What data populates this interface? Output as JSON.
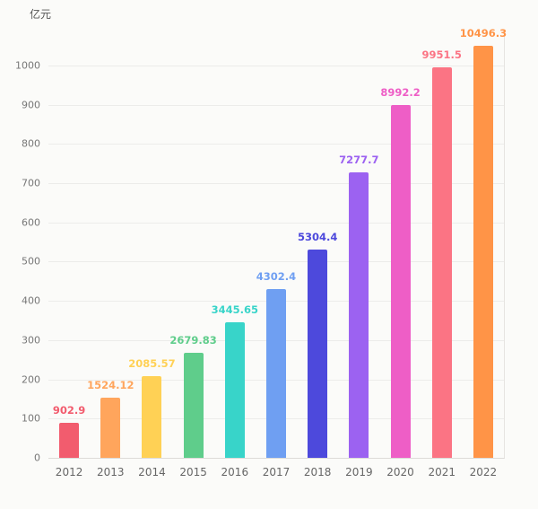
{
  "chart_data": {
    "type": "bar",
    "title": "",
    "xlabel": "",
    "ylabel": "亿元",
    "categories": [
      "2012",
      "2013",
      "2014",
      "2015",
      "2016",
      "2017",
      "2018",
      "2019",
      "2020",
      "2021",
      "2022"
    ],
    "values": [
      902.9,
      1524.12,
      2085.57,
      2679.83,
      3445.65,
      4302.4,
      5304.4,
      7277.7,
      8992.2,
      9951.5,
      10496.3
    ],
    "value_labels": [
      "902.9",
      "1524.12",
      "2085.57",
      "2679.83",
      "3445.65",
      "4302.4",
      "5304.4",
      "7277.7",
      "8992.2",
      "9951.5",
      "10496.3"
    ],
    "bar_colors": [
      "#f25c6e",
      "#ffa55c",
      "#ffd155",
      "#5fcd8b",
      "#38d4c9",
      "#6f9ff2",
      "#4d49dc",
      "#9c62f1",
      "#ee5ec6",
      "#fb7484",
      "#ff9447"
    ],
    "axis_ticks": [
      0,
      100,
      200,
      300,
      400,
      500,
      600,
      700,
      800,
      900,
      1000
    ],
    "plot_value_divisor": 10,
    "ylim": [
      0,
      1080
    ],
    "grid": true,
    "legend": false
  }
}
